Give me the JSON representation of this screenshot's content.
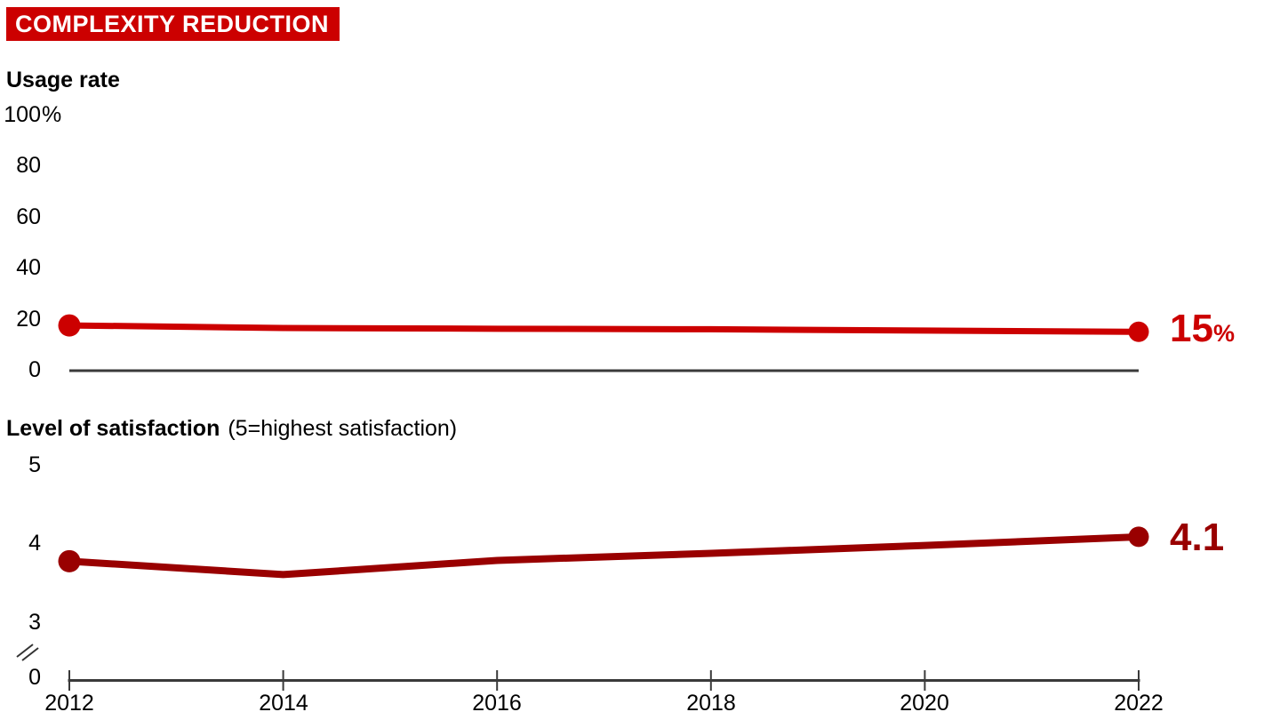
{
  "page": {
    "title_badge": "COMPLEXITY REDUCTION"
  },
  "colors": {
    "accent_red": "#cc0000",
    "dark_red": "#990000",
    "axis_gray": "#3a3a3a",
    "badge_text": "#ffffff",
    "text": "#000000"
  },
  "chart_data": [
    {
      "type": "line",
      "title": "Usage rate",
      "x": [
        2012,
        2014,
        2016,
        2018,
        2020,
        2022
      ],
      "series": [
        {
          "name": "Usage rate",
          "color_key": "accent_red",
          "values": [
            17.5,
            16.5,
            16.2,
            16.0,
            15.5,
            15.0
          ]
        }
      ],
      "ylim": [
        0,
        100
      ],
      "yticks": [
        "100",
        "80",
        "60",
        "40",
        "20",
        "0"
      ],
      "ytick_values": [
        100,
        80,
        60,
        40,
        20,
        0
      ],
      "ytick_unit": "%",
      "grid": false,
      "legend": "none",
      "baseline_axis": true,
      "end_label": {
        "value": "15",
        "unit": "%"
      }
    },
    {
      "type": "line",
      "title": "Level of satisfaction",
      "title_note": "(5=highest satisfaction)",
      "x": [
        2012,
        2014,
        2016,
        2018,
        2020,
        2022
      ],
      "series": [
        {
          "name": "Level of satisfaction",
          "color_key": "dark_red",
          "values": [
            3.77,
            3.6,
            3.78,
            3.87,
            3.97,
            4.08
          ]
        }
      ],
      "ylim_shown": [
        3,
        5
      ],
      "axis_break": true,
      "yticks": [
        "5",
        "4",
        "3",
        "0"
      ],
      "ytick_values": [
        5,
        4,
        3,
        0
      ],
      "xticks": [
        "2012",
        "2014",
        "2016",
        "2018",
        "2020",
        "2022"
      ],
      "grid": false,
      "legend": "none",
      "end_label": {
        "value": "4.1"
      }
    }
  ]
}
